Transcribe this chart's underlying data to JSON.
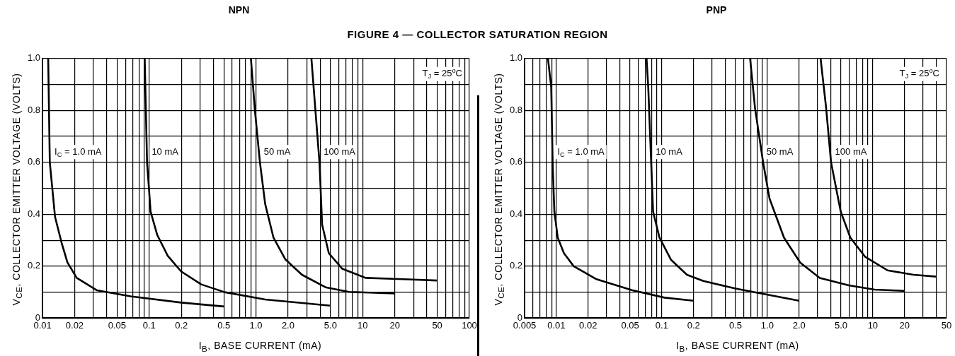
{
  "chart_data": [
    {
      "type": "line",
      "title": "NPN",
      "subtitle": "FIGURE 4 — COLLECTOR SATURATION REGION",
      "xlabel": "I$_{B}$, BASE CURRENT (mA)",
      "ylabel": "V$_{CE}$, COLLECTOR EMITTER VOLTAGE (VOLTS)",
      "log": "x",
      "grid": true,
      "legend": false,
      "marker": "none",
      "line_style": "solid",
      "xlim": [
        0.01,
        100
      ],
      "xticks": [
        0.01,
        0.02,
        {
          "value": 0.03,
          "label": null
        },
        {
          "value": 0.04,
          "label": null
        },
        0.05,
        {
          "value": 0.06,
          "label": null
        },
        {
          "value": 0.07,
          "label": null
        },
        {
          "value": 0.08,
          "label": null
        },
        {
          "value": 0.09,
          "label": null
        },
        0.1,
        0.2,
        {
          "value": 0.3,
          "label": null
        },
        {
          "value": 0.4,
          "label": null
        },
        0.5,
        {
          "value": 0.6,
          "label": null
        },
        {
          "value": 0.7,
          "label": null
        },
        {
          "value": 0.8,
          "label": null
        },
        {
          "value": 0.9,
          "label": null
        },
        {
          "value": 1,
          "label": "1.0"
        },
        {
          "value": 2,
          "label": "2.0"
        },
        {
          "value": 3,
          "label": null
        },
        {
          "value": 4,
          "label": null
        },
        {
          "value": 5,
          "label": "5.0"
        },
        {
          "value": 6,
          "label": null
        },
        {
          "value": 7,
          "label": null
        },
        {
          "value": 8,
          "label": null
        },
        {
          "value": 9,
          "label": null
        },
        10,
        20,
        {
          "value": 30,
          "label": null
        },
        {
          "value": 40,
          "label": null
        },
        50,
        {
          "value": 60,
          "label": null
        },
        {
          "value": 70,
          "label": null
        },
        {
          "value": 80,
          "label": null
        },
        {
          "value": 90,
          "label": null
        },
        100
      ],
      "ylim": [
        0,
        1
      ],
      "yticks": [
        0,
        {
          "value": 0.1,
          "label": null
        },
        0.2,
        {
          "value": 0.3,
          "label": null
        },
        0.4,
        {
          "value": 0.5,
          "label": null
        },
        0.6,
        {
          "value": 0.7,
          "label": null
        },
        0.8,
        {
          "value": 0.9,
          "label": null
        },
        {
          "value": 1,
          "label": "1.0"
        }
      ],
      "series": [
        {
          "name": "I$_{C}$ = 1.0 mA",
          "color": "#000000",
          "x": [
            0.0113,
            0.0117,
            0.0131,
            0.0151,
            0.0171,
            0.0209,
            0.0324,
            0.0668,
            0.199,
            0.5
          ],
          "values": [
            1.0,
            0.6,
            0.39,
            0.29,
            0.215,
            0.155,
            0.107,
            0.084,
            0.06,
            0.045
          ]
        },
        {
          "name": "10 mA",
          "color": "#000000",
          "x": [
            0.0907,
            0.0954,
            0.103,
            0.119,
            0.149,
            0.199,
            0.307,
            0.509,
            1.22,
            5.0
          ],
          "values": [
            1.0,
            0.6,
            0.41,
            0.32,
            0.24,
            0.18,
            0.13,
            0.1,
            0.072,
            0.048
          ]
        },
        {
          "name": "50 mA",
          "color": "#000000",
          "x": [
            0.897,
            0.978,
            1.09,
            1.22,
            1.46,
            1.88,
            2.7,
            4.49,
            7.45,
            20
          ],
          "values": [
            1.0,
            0.8,
            0.6,
            0.44,
            0.31,
            0.227,
            0.167,
            0.119,
            0.101,
            0.095
          ]
        },
        {
          "name": "100 mA",
          "color": "#000000",
          "x": [
            3.31,
            3.61,
            3.94,
            4.17,
            4.82,
            6.45,
            10.7,
            23.8,
            50
          ],
          "values": [
            1.0,
            0.8,
            0.6,
            0.36,
            0.25,
            0.19,
            0.155,
            0.15,
            0.145
          ]
        }
      ],
      "annotations": [
        "T$_{J}$ = 25$^{o}$C"
      ]
    },
    {
      "type": "line",
      "title": "PNP",
      "xlabel": "I$_{B}$, BASE CURRENT (mA)",
      "ylabel": "V$_{CE}$, COLLECTOR EMITTER VOLTAGE (VOLTS)",
      "log": "x",
      "grid": true,
      "legend": false,
      "marker": "none",
      "line_style": "solid",
      "xlim": [
        0.005,
        50
      ],
      "xticks": [
        0.005,
        {
          "value": 0.006,
          "label": null
        },
        {
          "value": 0.007,
          "label": null
        },
        {
          "value": 0.008,
          "label": null
        },
        {
          "value": 0.009,
          "label": null
        },
        0.01,
        0.02,
        {
          "value": 0.03,
          "label": null
        },
        {
          "value": 0.04,
          "label": null
        },
        0.05,
        {
          "value": 0.06,
          "label": null
        },
        {
          "value": 0.07,
          "label": null
        },
        {
          "value": 0.08,
          "label": null
        },
        {
          "value": 0.09,
          "label": null
        },
        0.1,
        0.2,
        {
          "value": 0.3,
          "label": null
        },
        {
          "value": 0.4,
          "label": null
        },
        0.5,
        {
          "value": 0.6,
          "label": null
        },
        {
          "value": 0.7,
          "label": null
        },
        {
          "value": 0.8,
          "label": null
        },
        {
          "value": 0.9,
          "label": null
        },
        {
          "value": 1,
          "label": "1.0"
        },
        {
          "value": 2,
          "label": "2.0"
        },
        {
          "value": 3,
          "label": null
        },
        {
          "value": 4,
          "label": null
        },
        {
          "value": 5,
          "label": "5.0"
        },
        {
          "value": 6,
          "label": null
        },
        {
          "value": 7,
          "label": null
        },
        {
          "value": 8,
          "label": null
        },
        {
          "value": 9,
          "label": null
        },
        10,
        20,
        {
          "value": 30,
          "label": null
        },
        {
          "value": 40,
          "label": null
        },
        50
      ],
      "ylim": [
        0,
        1
      ],
      "yticks": [
        0,
        {
          "value": 0.1,
          "label": null
        },
        0.2,
        {
          "value": 0.3,
          "label": null
        },
        0.4,
        {
          "value": 0.5,
          "label": null
        },
        0.6,
        {
          "value": 0.7,
          "label": null
        },
        0.8,
        {
          "value": 0.9,
          "label": null
        },
        {
          "value": 1,
          "label": "1.0"
        }
      ],
      "series": [
        {
          "name": "I$_{C}$ = 1.0 mA",
          "color": "#000000",
          "x": [
            0.00832,
            0.00893,
            0.00924,
            0.00957,
            0.0103,
            0.0118,
            0.0146,
            0.024,
            0.052,
            0.106,
            0.2
          ],
          "values": [
            1.0,
            0.89,
            0.58,
            0.41,
            0.31,
            0.25,
            0.2,
            0.15,
            0.108,
            0.079,
            0.067
          ]
        },
        {
          "name": "10 mA",
          "color": "#000000",
          "x": [
            0.0716,
            0.0743,
            0.0826,
            0.095,
            0.122,
            0.173,
            0.247,
            0.5,
            1.01,
            2.0
          ],
          "values": [
            1.0,
            0.89,
            0.41,
            0.31,
            0.225,
            0.167,
            0.143,
            0.114,
            0.09,
            0.067
          ]
        },
        {
          "name": "50 mA",
          "color": "#000000",
          "x": [
            0.687,
            0.764,
            0.912,
            1.05,
            1.44,
            2.05,
            3.14,
            5.93,
            10.4,
            20
          ],
          "values": [
            1.0,
            0.81,
            0.6,
            0.46,
            0.31,
            0.214,
            0.155,
            0.126,
            0.11,
            0.105
          ]
        },
        {
          "name": "100 mA",
          "color": "#000000",
          "x": [
            3.2,
            3.61,
            4.02,
            4.97,
            6.13,
            8.43,
            13.8,
            24.3,
            40
          ],
          "values": [
            1.0,
            0.81,
            0.6,
            0.41,
            0.31,
            0.237,
            0.184,
            0.167,
            0.16
          ]
        }
      ],
      "annotations": [
        "T$_{J}$ = 25$^{o}$C"
      ]
    }
  ]
}
